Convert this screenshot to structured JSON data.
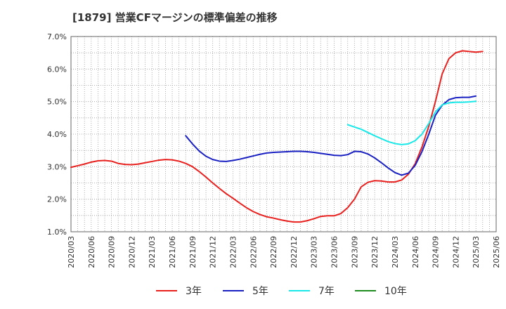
{
  "chart_data": {
    "type": "line",
    "title": "[1879]  営業CFマージンの標準偏差の推移",
    "xlabel": "",
    "ylabel": "",
    "ylim": [
      1.0,
      7.0
    ],
    "y_ticks": [
      "1.0%",
      "2.0%",
      "3.0%",
      "4.0%",
      "5.0%",
      "6.0%",
      "7.0%"
    ],
    "x_ticks": [
      "2020/03",
      "2020/06",
      "2020/09",
      "2020/12",
      "2021/03",
      "2021/06",
      "2021/09",
      "2021/12",
      "2022/03",
      "2022/06",
      "2022/09",
      "2022/12",
      "2023/03",
      "2023/06",
      "2023/09",
      "2023/12",
      "2024/03",
      "2024/06",
      "2024/09",
      "2024/12",
      "2025/03",
      "2025/06"
    ],
    "grid": true,
    "legend_position": "bottom",
    "series": [
      {
        "name": "3年",
        "color": "#e8201e",
        "points": [
          [
            "2020/03",
            2.98
          ],
          [
            "2020/04",
            3.03
          ],
          [
            "2020/05",
            3.08
          ],
          [
            "2020/06",
            3.14
          ],
          [
            "2020/07",
            3.18
          ],
          [
            "2020/08",
            3.19
          ],
          [
            "2020/09",
            3.17
          ],
          [
            "2020/10",
            3.1
          ],
          [
            "2020/11",
            3.07
          ],
          [
            "2020/12",
            3.06
          ],
          [
            "2021/01",
            3.08
          ],
          [
            "2021/02",
            3.12
          ],
          [
            "2021/03",
            3.16
          ],
          [
            "2021/04",
            3.2
          ],
          [
            "2021/05",
            3.22
          ],
          [
            "2021/06",
            3.21
          ],
          [
            "2021/07",
            3.17
          ],
          [
            "2021/08",
            3.1
          ],
          [
            "2021/09",
            3.0
          ],
          [
            "2021/10",
            2.85
          ],
          [
            "2021/11",
            2.68
          ],
          [
            "2021/12",
            2.5
          ],
          [
            "2022/01",
            2.33
          ],
          [
            "2022/02",
            2.17
          ],
          [
            "2022/03",
            2.03
          ],
          [
            "2022/04",
            1.88
          ],
          [
            "2022/05",
            1.74
          ],
          [
            "2022/06",
            1.62
          ],
          [
            "2022/07",
            1.53
          ],
          [
            "2022/08",
            1.46
          ],
          [
            "2022/09",
            1.42
          ],
          [
            "2022/10",
            1.37
          ],
          [
            "2022/11",
            1.33
          ],
          [
            "2022/12",
            1.3
          ],
          [
            "2023/01",
            1.3
          ],
          [
            "2023/02",
            1.34
          ],
          [
            "2023/03",
            1.4
          ],
          [
            "2023/04",
            1.47
          ],
          [
            "2023/05",
            1.49
          ],
          [
            "2023/06",
            1.49
          ],
          [
            "2023/07",
            1.56
          ],
          [
            "2023/08",
            1.74
          ],
          [
            "2023/09",
            2.0
          ],
          [
            "2023/10",
            2.38
          ],
          [
            "2023/11",
            2.52
          ],
          [
            "2023/12",
            2.57
          ],
          [
            "2024/01",
            2.56
          ],
          [
            "2024/02",
            2.53
          ],
          [
            "2024/03",
            2.53
          ],
          [
            "2024/04",
            2.59
          ],
          [
            "2024/05",
            2.77
          ],
          [
            "2024/06",
            3.09
          ],
          [
            "2024/07",
            3.6
          ],
          [
            "2024/08",
            4.23
          ],
          [
            "2024/09",
            5.0
          ],
          [
            "2024/10",
            5.85
          ],
          [
            "2024/11",
            6.32
          ],
          [
            "2024/12",
            6.5
          ],
          [
            "2025/01",
            6.56
          ],
          [
            "2025/02",
            6.54
          ],
          [
            "2025/03",
            6.52
          ],
          [
            "2025/04",
            6.54
          ]
        ]
      },
      {
        "name": "5年",
        "color": "#1a21c2",
        "points": [
          [
            "2021/08",
            3.95
          ],
          [
            "2021/09",
            3.7
          ],
          [
            "2021/10",
            3.48
          ],
          [
            "2021/11",
            3.32
          ],
          [
            "2021/12",
            3.22
          ],
          [
            "2022/01",
            3.17
          ],
          [
            "2022/02",
            3.16
          ],
          [
            "2022/03",
            3.19
          ],
          [
            "2022/04",
            3.23
          ],
          [
            "2022/05",
            3.28
          ],
          [
            "2022/06",
            3.33
          ],
          [
            "2022/07",
            3.38
          ],
          [
            "2022/08",
            3.42
          ],
          [
            "2022/09",
            3.44
          ],
          [
            "2022/10",
            3.45
          ],
          [
            "2022/11",
            3.46
          ],
          [
            "2022/12",
            3.47
          ],
          [
            "2023/01",
            3.47
          ],
          [
            "2023/02",
            3.46
          ],
          [
            "2023/03",
            3.44
          ],
          [
            "2023/04",
            3.41
          ],
          [
            "2023/05",
            3.38
          ],
          [
            "2023/06",
            3.35
          ],
          [
            "2023/07",
            3.34
          ],
          [
            "2023/08",
            3.37
          ],
          [
            "2023/09",
            3.47
          ],
          [
            "2023/10",
            3.46
          ],
          [
            "2023/11",
            3.39
          ],
          [
            "2023/12",
            3.27
          ],
          [
            "2024/01",
            3.12
          ],
          [
            "2024/02",
            2.96
          ],
          [
            "2024/03",
            2.82
          ],
          [
            "2024/04",
            2.74
          ],
          [
            "2024/05",
            2.8
          ],
          [
            "2024/06",
            3.04
          ],
          [
            "2024/07",
            3.46
          ],
          [
            "2024/08",
            3.99
          ],
          [
            "2024/09",
            4.58
          ],
          [
            "2024/10",
            4.89
          ],
          [
            "2024/11",
            5.06
          ],
          [
            "2024/12",
            5.12
          ],
          [
            "2025/01",
            5.13
          ],
          [
            "2025/02",
            5.13
          ],
          [
            "2025/03",
            5.17
          ]
        ]
      },
      {
        "name": "7年",
        "color": "#18e8e8",
        "points": [
          [
            "2023/08",
            4.29
          ],
          [
            "2023/09",
            4.22
          ],
          [
            "2023/10",
            4.15
          ],
          [
            "2023/11",
            4.05
          ],
          [
            "2023/12",
            3.95
          ],
          [
            "2024/01",
            3.86
          ],
          [
            "2024/02",
            3.77
          ],
          [
            "2024/03",
            3.71
          ],
          [
            "2024/04",
            3.68
          ],
          [
            "2024/05",
            3.7
          ],
          [
            "2024/06",
            3.8
          ],
          [
            "2024/07",
            4.0
          ],
          [
            "2024/08",
            4.32
          ],
          [
            "2024/09",
            4.68
          ],
          [
            "2024/10",
            4.9
          ],
          [
            "2024/11",
            4.96
          ],
          [
            "2024/12",
            4.98
          ],
          [
            "2025/01",
            4.98
          ],
          [
            "2025/02",
            4.99
          ],
          [
            "2025/03",
            5.01
          ]
        ]
      },
      {
        "name": "10年",
        "color": "#1f8c1f",
        "points": []
      }
    ]
  }
}
